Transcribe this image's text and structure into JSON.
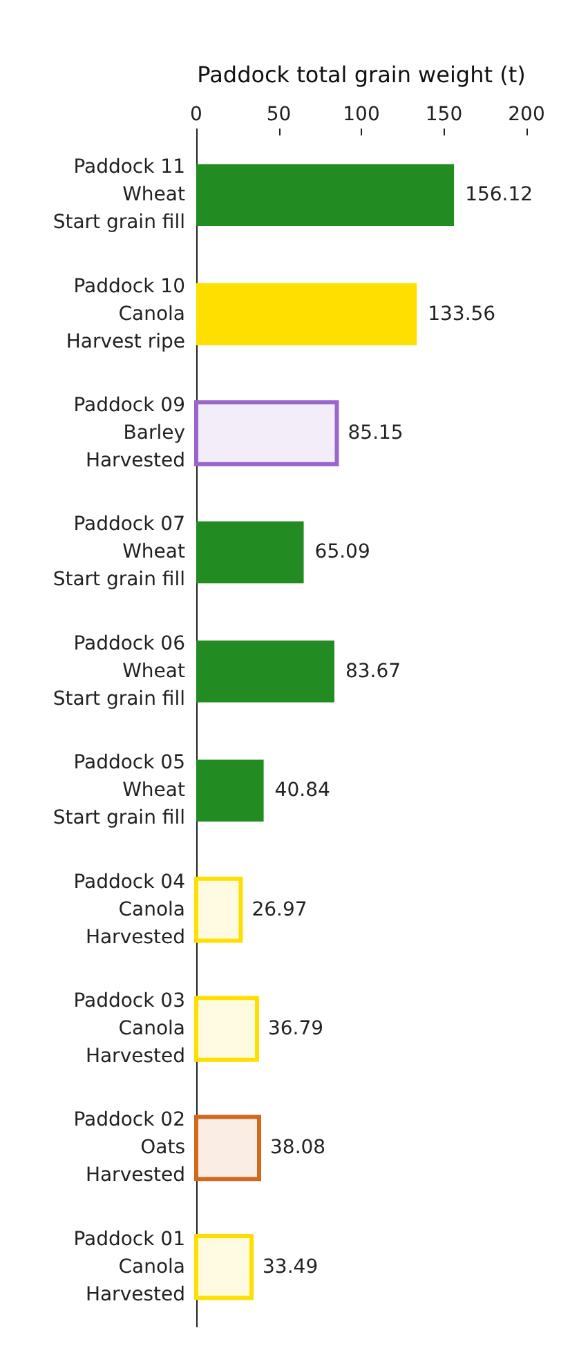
{
  "chart_data": {
    "type": "bar",
    "orientation": "horizontal",
    "xlabel": "Paddock total grain weight (t)",
    "categories": [
      "Paddock 11\nWheat\nStart grain fill",
      "Paddock 10\nCanola\nHarvest ripe",
      "Paddock 09\nBarley\nHarvested",
      "Paddock 07\nWheat\nStart grain fill",
      "Paddock 06\nWheat\nStart grain fill",
      "Paddock 05\nWheat\nStart grain fill",
      "Paddock 04\nCanola\nHarvested",
      "Paddock 03\nCanola\nHarvested",
      "Paddock 02\nOats\nHarvested",
      "Paddock 01\nCanola\nHarvested"
    ],
    "series": [
      {
        "values": [
          156.12,
          133.56,
          null,
          65.09,
          83.67,
          40.84,
          null,
          null,
          null,
          null
        ],
        "colors": [
          "#228b22",
          "#ffdf00",
          null,
          "#228b22",
          "#228b22",
          "#228b22",
          null,
          null,
          null,
          null
        ]
      },
      {
        "line_style": "solid",
        "values": [
          null,
          null,
          85.15,
          null,
          null,
          null,
          26.97,
          36.79,
          38.08,
          33.49
        ],
        "colors": [
          null,
          null,
          "#9966cc",
          null,
          null,
          null,
          "#ffdf00",
          "#ffdf00",
          "#d2691e",
          "#ffdf00"
        ]
      }
    ],
    "xlim": [
      0,
      200
    ],
    "xticks": [
      0,
      50,
      100,
      150,
      200
    ],
    "data_labels": true,
    "grid": false
  }
}
